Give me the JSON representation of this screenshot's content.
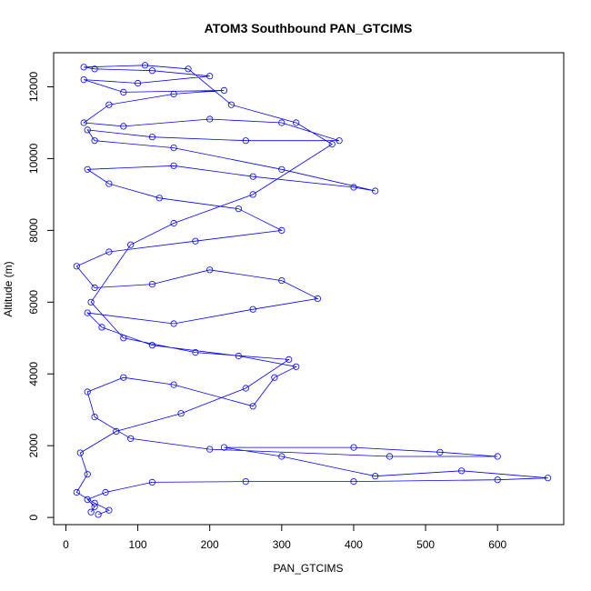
{
  "chart_data": {
    "type": "scatter",
    "title": "ATOM3 Southbound PAN_GTCIMS",
    "xlabel": "PAN_GTCIMS",
    "ylabel": "Altitude (m)",
    "xlim": [
      -17,
      692
    ],
    "ylim": [
      -200,
      12950
    ],
    "x_ticks": [
      0,
      100,
      200,
      300,
      400,
      500,
      600
    ],
    "y_ticks": [
      0,
      2000,
      4000,
      6000,
      8000,
      10000,
      12000
    ],
    "grid": false,
    "legend": "none",
    "series_color": "#0000ff",
    "marker": "open-circle",
    "connected": true,
    "series": [
      {
        "values": [
          [
            35,
            150
          ],
          [
            40,
            300
          ],
          [
            30,
            500
          ],
          [
            55,
            700
          ],
          [
            120,
            980
          ],
          [
            250,
            1000
          ],
          [
            400,
            1000
          ],
          [
            600,
            1050
          ],
          [
            670,
            1100
          ],
          [
            550,
            1300
          ],
          [
            430,
            1150
          ],
          [
            300,
            1700
          ],
          [
            220,
            1950
          ],
          [
            400,
            1950
          ],
          [
            520,
            1820
          ],
          [
            600,
            1700
          ],
          [
            450,
            1700
          ],
          [
            200,
            1900
          ],
          [
            90,
            2200
          ],
          [
            40,
            2800
          ],
          [
            30,
            3500
          ],
          [
            80,
            3900
          ],
          [
            150,
            3700
          ],
          [
            260,
            3100
          ],
          [
            290,
            3900
          ],
          [
            320,
            4200
          ],
          [
            240,
            4500
          ],
          [
            120,
            4800
          ],
          [
            50,
            5300
          ],
          [
            30,
            5700
          ],
          [
            150,
            5400
          ],
          [
            260,
            5800
          ],
          [
            350,
            6100
          ],
          [
            300,
            6600
          ],
          [
            200,
            6900
          ],
          [
            120,
            6500
          ],
          [
            40,
            6400
          ],
          [
            15,
            7000
          ],
          [
            60,
            7400
          ],
          [
            180,
            7700
          ],
          [
            300,
            8000
          ],
          [
            240,
            8600
          ],
          [
            130,
            8900
          ],
          [
            60,
            9300
          ],
          [
            30,
            9700
          ],
          [
            150,
            9800
          ],
          [
            260,
            9500
          ],
          [
            400,
            9200
          ],
          [
            430,
            9100
          ],
          [
            300,
            9700
          ],
          [
            150,
            10300
          ],
          [
            40,
            10500
          ],
          [
            30,
            10800
          ],
          [
            120,
            10600
          ],
          [
            250,
            10500
          ],
          [
            380,
            10500
          ],
          [
            300,
            11000
          ],
          [
            200,
            11100
          ],
          [
            80,
            10900
          ],
          [
            25,
            11000
          ],
          [
            60,
            11500
          ],
          [
            150,
            11800
          ],
          [
            220,
            11900
          ],
          [
            80,
            11850
          ],
          [
            25,
            12200
          ],
          [
            100,
            12100
          ],
          [
            200,
            12300
          ],
          [
            120,
            12450
          ],
          [
            40,
            12500
          ],
          [
            25,
            12550
          ],
          [
            110,
            12600
          ],
          [
            170,
            12500
          ],
          [
            230,
            11500
          ],
          [
            320,
            11000
          ],
          [
            370,
            10400
          ],
          [
            260,
            9000
          ],
          [
            150,
            8200
          ],
          [
            90,
            7600
          ],
          [
            35,
            6000
          ],
          [
            80,
            5000
          ],
          [
            180,
            4600
          ],
          [
            310,
            4400
          ],
          [
            250,
            3600
          ],
          [
            160,
            2900
          ],
          [
            70,
            2400
          ],
          [
            20,
            1800
          ],
          [
            30,
            1200
          ],
          [
            15,
            700
          ],
          [
            40,
            400
          ],
          [
            60,
            200
          ],
          [
            45,
            80
          ]
        ]
      }
    ]
  }
}
